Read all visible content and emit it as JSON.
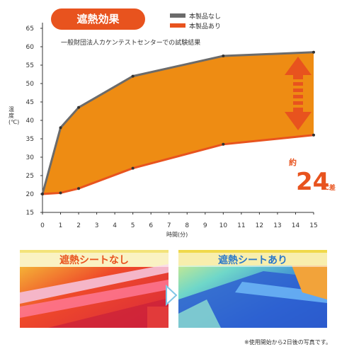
{
  "title": "遮熱効果",
  "legend": [
    {
      "name": "本製品なし",
      "color": "#6b6b6b"
    },
    {
      "name": "本製品あり",
      "color": "#e8531e"
    }
  ],
  "source_note": "一般財団法人カケンテストセンターでの試験結果",
  "diff_badge": {
    "prefix": "約",
    "value": "24",
    "unit": "℃差"
  },
  "colors": {
    "fill": "#ee8c13",
    "accent": "#e8531e",
    "line_without": "#6b6b6b",
    "line_with": "#e8531e"
  },
  "chart_data": {
    "type": "line",
    "xlabel": "時間(分)",
    "ylabel": "温度(℃)",
    "x_ticks": [
      0,
      1,
      2,
      3,
      4,
      5,
      6,
      7,
      8,
      9,
      10,
      11,
      12,
      13,
      14,
      15
    ],
    "y_ticks": [
      15,
      20,
      25,
      30,
      35,
      40,
      45,
      50,
      55,
      60,
      65
    ],
    "xlim": [
      0,
      15
    ],
    "ylim": [
      15,
      65
    ],
    "grid": false,
    "legend_position": "top-right",
    "series": [
      {
        "name": "本製品なし",
        "x": [
          0,
          1,
          2,
          5,
          10,
          15
        ],
        "y": [
          20,
          38,
          43.5,
          52,
          57.5,
          58.5
        ]
      },
      {
        "name": "本製品あり",
        "x": [
          0,
          1,
          2,
          5,
          10,
          15
        ],
        "y": [
          20,
          20.3,
          21.5,
          27,
          33.5,
          36
        ]
      }
    ]
  },
  "photos": [
    {
      "label": "遮熱シートなし"
    },
    {
      "label": "遮熱シートあり"
    }
  ],
  "footnote": "※使用開始から2日後の写真です。"
}
